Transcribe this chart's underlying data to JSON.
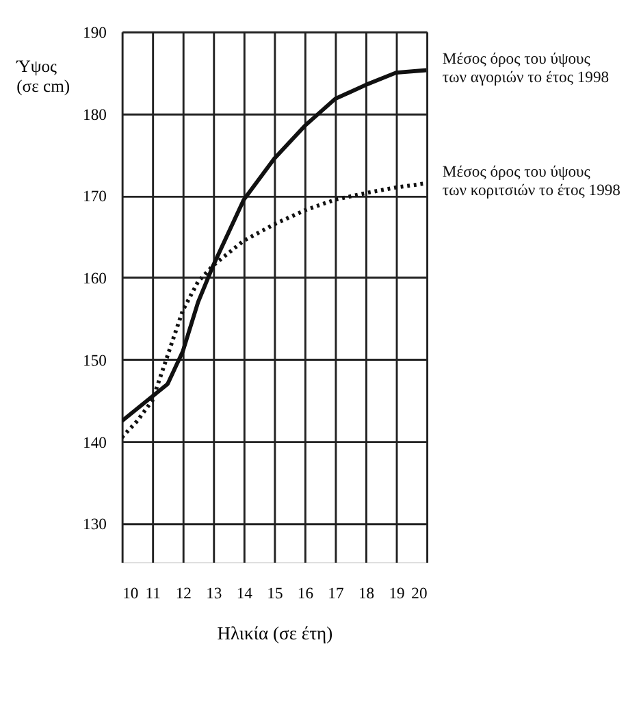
{
  "chart_data": {
    "type": "line",
    "xlabel": "Ηλικία (σε έτη)",
    "ylabel": "Ύψος\n(σε cm)",
    "xlim": [
      10,
      20
    ],
    "xticks": [
      10,
      11,
      12,
      13,
      14,
      15,
      16,
      17,
      18,
      19,
      20
    ],
    "ylim": [
      125.3,
      190
    ],
    "yticks": [
      130,
      140,
      150,
      160,
      170,
      180,
      190
    ],
    "grid": true,
    "legend": false,
    "marker": "none",
    "series": [
      {
        "name": "Μέσος όρος του ύψους\nτων αγοριών το έτος 1998",
        "color": "#111111",
        "line_style": "solid",
        "x": [
          10,
          11,
          11.5,
          12,
          12.5,
          13,
          14,
          15,
          16,
          17,
          18,
          19,
          20
        ],
        "values": [
          142.5,
          145.5,
          147,
          151,
          157,
          161.5,
          169.5,
          174.5,
          178.5,
          181.8,
          183.5,
          185,
          185.3
        ]
      },
      {
        "name": "Μέσος όρος του ύψους\nτων κοριτσιών το έτος 1998",
        "color": "#111111",
        "line_style": "dotted",
        "x": [
          10,
          10.5,
          11,
          11.5,
          12,
          12.5,
          13,
          14,
          15,
          16,
          17,
          18,
          19,
          20
        ],
        "values": [
          140.5,
          142.5,
          145,
          150.5,
          156,
          159.5,
          161.5,
          164.5,
          166.5,
          168.2,
          169.5,
          170.3,
          171,
          171.5
        ]
      }
    ]
  }
}
